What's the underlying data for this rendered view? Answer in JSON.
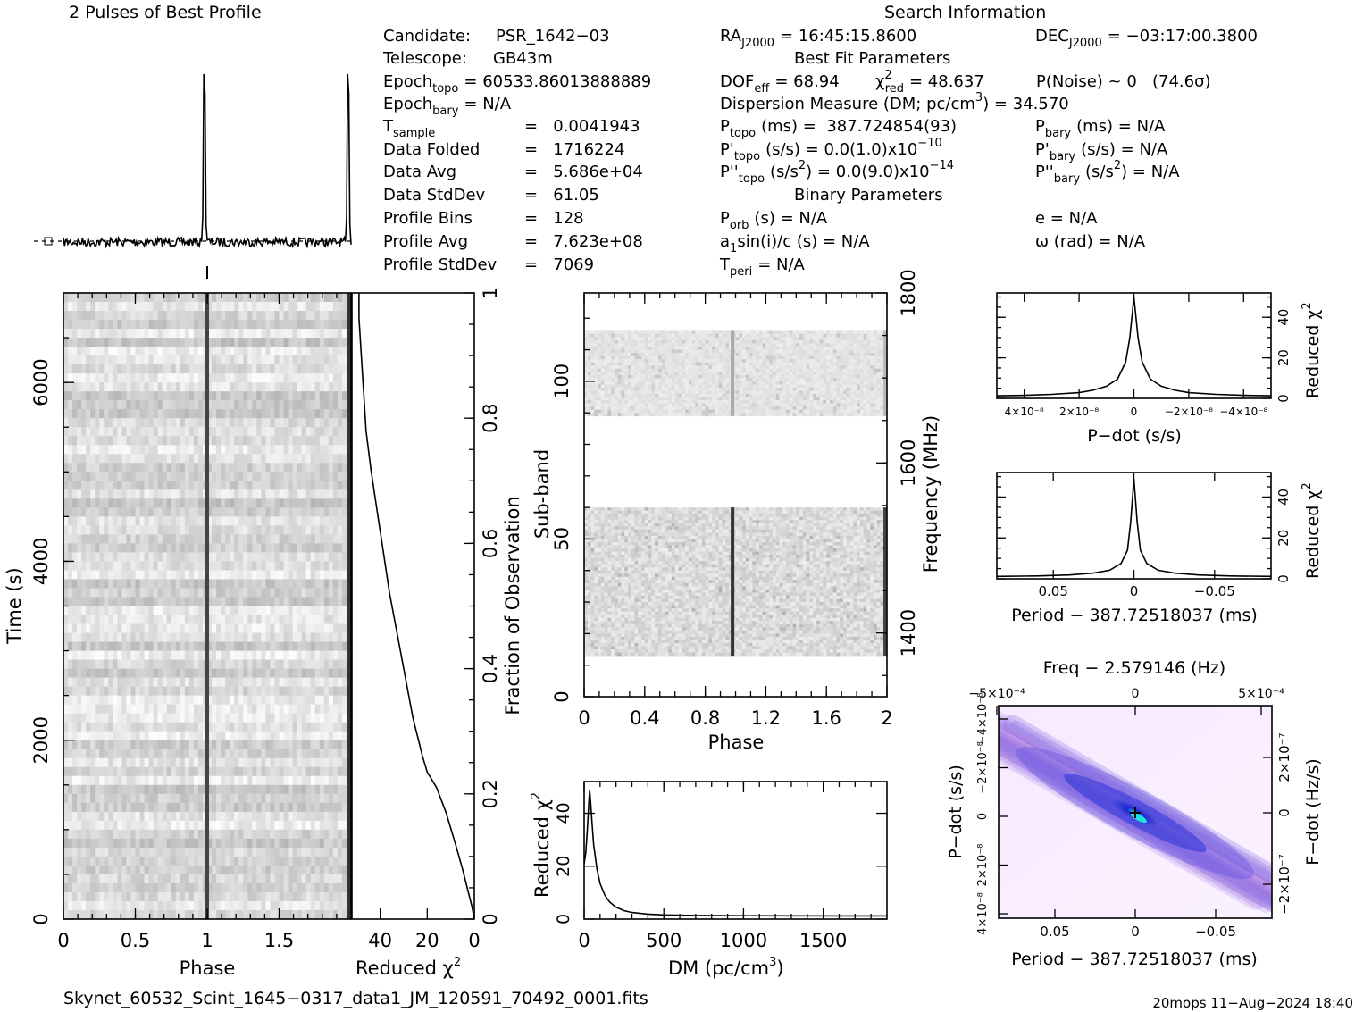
{
  "header": {
    "left_title": "2 Pulses of Best Profile",
    "right_title": "Search Information",
    "footer_file": "Skynet_60532_Scint_1645−0317_data1_JM_120591_70492_0001.fits",
    "footer_stamp": "20mops 11−Aug−2024 18:40"
  },
  "info": {
    "candidate": {
      "label": "Candidate:",
      "value": "PSR_1642−03"
    },
    "telescope": {
      "label": "Telescope:",
      "value": "GB43m"
    },
    "epoch_topo": {
      "main": "Epoch",
      "sub": "topo",
      "value": "= 60533.86013888889"
    },
    "epoch_bary": {
      "main": "Epoch",
      "sub": "bary",
      "value": "= N/A"
    },
    "tsample": {
      "main": "T",
      "sub": "sample",
      "value": "=   0.0041943"
    },
    "data_folded": {
      "label": "Data Folded",
      "value": "=   1716224"
    },
    "data_avg": {
      "label": "Data Avg",
      "value": "=   5.686e+04"
    },
    "data_stddev": {
      "label": "Data StdDev",
      "value": "=   61.05"
    },
    "profile_bins": {
      "label": "Profile Bins",
      "value": "=   128"
    },
    "profile_avg": {
      "label": "Profile Avg",
      "value": "=   7.623e+08"
    },
    "profile_stddev": {
      "label": "Profile StdDev",
      "value": "=   7069"
    }
  },
  "search": {
    "ra": {
      "main": "RA",
      "sub": "J2000",
      "value": "= 16:45:15.8600"
    },
    "dec": {
      "main": "DEC",
      "sub": "J2000",
      "value": "= −03:17:00.3800"
    },
    "best_fit_heading": "Best Fit Parameters",
    "dof": {
      "main": "DOF",
      "sub": "eff",
      "value": "= 68.94"
    },
    "chi2": {
      "main": "χ",
      "sup": "2",
      "sub": "red",
      "value": "= 48.637"
    },
    "pnoise": "P(Noise) ~ 0   (74.6σ)",
    "dm_line": {
      "main": "Dispersion Measure (DM; pc/cm",
      "sup": "3",
      "value": ") = 34.570"
    },
    "ptopo": {
      "main": "P",
      "sub": "topo",
      "value": "(ms) =  387.724854(93)"
    },
    "pbary": {
      "main": "P",
      "sub": "bary",
      "value": "(ms) = N/A"
    },
    "pdtopo": {
      "main": "P'",
      "sub": "topo",
      "value": "(s/s) = 0.0(1.0)x10",
      "sup": "−10"
    },
    "pdbary": {
      "main": "P'",
      "sub": "bary",
      "value": "(s/s) = N/A"
    },
    "pddtopo": {
      "main": "P''",
      "sub": "topo",
      "value": "(s/s",
      "sup1": "2",
      "value2": ") = 0.0(9.0)x10",
      "sup2": "−14"
    },
    "pddbary": {
      "main": "P''",
      "sub": "bary",
      "value": "(s/s",
      "sup1": "2",
      "value2": ") = N/A"
    },
    "binary_heading": "Binary Parameters",
    "porb": {
      "main": "P",
      "sub": "orb",
      "value": "(s) = N/A"
    },
    "e": "e = N/A",
    "a1": {
      "main": "a",
      "sub": "1",
      "value": "sin(i)/c (s) = N/A"
    },
    "omega": "ω (rad) = N/A",
    "tperi": {
      "main": "T",
      "sub": "peri",
      "value": "= N/A"
    }
  },
  "colors": {
    "ink": "#000000",
    "ppdot_low": "#fff5ff",
    "ppdot_mid": "#e2a8f0",
    "ppdot_high": "#2a2ae6",
    "ppdot_peak": "#20e0e0"
  },
  "chart_data": [
    {
      "id": "profile",
      "type": "line",
      "title": "2 Pulses of Best Profile",
      "xlim": [
        0,
        2
      ],
      "peaks_phase": [
        0.98,
        1.98
      ],
      "ylabel": "",
      "xlabel": ""
    },
    {
      "id": "time-phase",
      "type": "heatmap",
      "xlabel": "Phase",
      "ylabel": "Time (s)",
      "xlim": [
        0,
        2
      ],
      "ylim": [
        0,
        7000
      ],
      "x_ticks": [
        "0",
        "0.5",
        "1",
        "1.5"
      ],
      "y_ticks": [
        "0",
        "2000",
        "4000",
        "6000"
      ],
      "pulse_phase": 0.98
    },
    {
      "id": "reduced-chi2-vs-time",
      "type": "line",
      "xlabel": "Reduced χ²",
      "ylabel": "Fraction of Observation",
      "x_ticks": [
        "40",
        "20",
        "0"
      ],
      "y_ticks": [
        "0",
        "0.2",
        "0.4",
        "0.6",
        "0.8",
        "1"
      ],
      "xlim": [
        52,
        0
      ],
      "ylim": [
        0,
        1
      ],
      "x": [
        0,
        1,
        3,
        5,
        8,
        12,
        16,
        20,
        22,
        24,
        26,
        28,
        30,
        33,
        36,
        38,
        40,
        42,
        44,
        46,
        47,
        48,
        49,
        49
      ],
      "y": [
        0,
        0.02,
        0.05,
        0.08,
        0.12,
        0.17,
        0.21,
        0.235,
        0.26,
        0.29,
        0.32,
        0.36,
        0.4,
        0.46,
        0.52,
        0.57,
        0.62,
        0.67,
        0.72,
        0.78,
        0.84,
        0.9,
        0.96,
        1.0
      ]
    },
    {
      "id": "subband-phase",
      "type": "heatmap",
      "xlabel": "Phase",
      "ylabel": "Sub-band",
      "right_label": "Frequency (MHz)",
      "xlim": [
        0,
        2
      ],
      "ylim": [
        0,
        128
      ],
      "x_ticks": [
        "0",
        "0.4",
        "0.8",
        "1.2",
        "1.6",
        "2"
      ],
      "y_ticks": [
        "0",
        "50",
        "100"
      ],
      "freq_ticks": [
        "1400",
        "1600",
        "1800"
      ],
      "freq_range": [
        1325,
        1800
      ],
      "bands": [
        [
          13,
          60
        ],
        [
          89,
          116
        ]
      ],
      "pulse_phase": 0.98
    },
    {
      "id": "dm-curve",
      "type": "line",
      "xlabel": "DM (pc/cm³)",
      "ylabel": "Reduced χ²",
      "xlim": [
        0,
        1900
      ],
      "ylim": [
        0,
        52
      ],
      "x_ticks": [
        "0",
        "500",
        "1000",
        "1500"
      ],
      "y_ticks": [
        "0",
        "20",
        "40"
      ],
      "x": [
        0,
        10,
        20,
        30,
        34.57,
        40,
        50,
        60,
        80,
        100,
        130,
        160,
        200,
        250,
        300,
        400,
        500,
        700,
        1000,
        1300,
        1600,
        1900
      ],
      "y": [
        21,
        25,
        34,
        45,
        48.6,
        45,
        36,
        28,
        19,
        13.5,
        9,
        6.5,
        4.5,
        3.2,
        2.5,
        1.9,
        1.6,
        1.4,
        1.3,
        1.25,
        1.2,
        1.2
      ]
    },
    {
      "id": "pdot-curve",
      "type": "line",
      "xlabel": "P−dot (s/s)",
      "ylabel": "Reduced χ²",
      "xlim": [
        5e-08,
        -5e-08
      ],
      "ylim": [
        0,
        52
      ],
      "x_ticks": [
        "4×10⁻⁸",
        "2×10⁻⁸",
        "0",
        "−2×10⁻⁸",
        "−4×10⁻⁸"
      ],
      "y_ticks": [
        "0",
        "20",
        "40"
      ],
      "x": [
        5e-08,
        4e-08,
        3e-08,
        2e-08,
        1.5e-08,
        1e-08,
        6e-09,
        3e-09,
        1.5e-09,
        0,
        -1.5e-09,
        -3e-09,
        -6e-09,
        -1e-08,
        -1.5e-08,
        -2e-08,
        -3e-08,
        -4e-08,
        -5e-08
      ],
      "y": [
        1.3,
        1.5,
        2.0,
        2.8,
        4.0,
        6.0,
        9.5,
        18,
        30,
        50,
        30,
        18,
        9.5,
        6.0,
        4.0,
        2.8,
        2.0,
        1.5,
        1.3
      ]
    },
    {
      "id": "period-curve",
      "type": "line",
      "xlabel": "Period − 387.72518037 (ms)",
      "ylabel": "Reduced χ²",
      "xlim": [
        0.085,
        -0.085
      ],
      "ylim": [
        0,
        52
      ],
      "x_ticks": [
        "0.05",
        "0",
        "−0.05"
      ],
      "y_ticks": [
        "0",
        "20",
        "40"
      ],
      "x": [
        0.085,
        0.06,
        0.04,
        0.025,
        0.015,
        0.008,
        0.004,
        0.002,
        0,
        -0.002,
        -0.004,
        -0.008,
        -0.015,
        -0.025,
        -0.04,
        -0.06,
        -0.085
      ],
      "y": [
        1.2,
        1.4,
        1.9,
        2.8,
        4.2,
        7.5,
        14,
        28,
        49,
        28,
        14,
        7.5,
        4.2,
        2.8,
        1.9,
        1.4,
        1.2
      ]
    },
    {
      "id": "p-pdot-plane",
      "type": "heatmap",
      "title": "Freq − 2.579146 (Hz)",
      "xlabel": "Period − 387.72518037 (ms)",
      "ylabel": "P−dot (s/s)",
      "right_label": "F−dot (Hz/s)",
      "xlim": [
        0.085,
        -0.085
      ],
      "ylim": [
        -4.5e-08,
        4.5e-08
      ],
      "x_ticks": [
        "0.05",
        "0",
        "−0.05"
      ],
      "top_ticks": [
        "−5×10⁻⁴",
        "0",
        "5×10⁻⁴"
      ],
      "y_ticks": [
        "4×10⁻⁸",
        "2×10⁻⁸",
        "0",
        "−2×10⁻⁸",
        "−4×10⁻⁸"
      ],
      "right_ticks": [
        "2×10⁻⁷",
        "0",
        "−2×10⁻⁷"
      ]
    }
  ]
}
